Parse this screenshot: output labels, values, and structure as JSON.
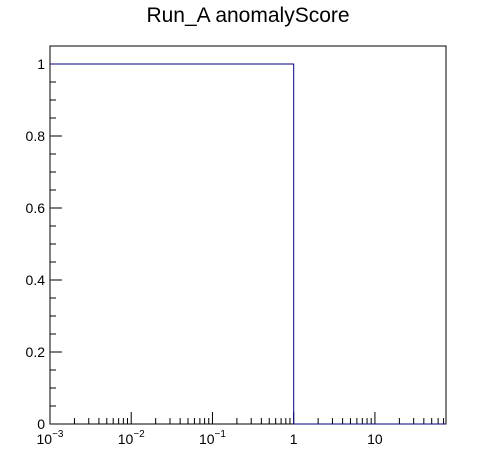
{
  "chart_data": {
    "type": "line",
    "title": "Run_A anomalyScore",
    "xlabel": "",
    "ylabel": "",
    "x_scale": "log",
    "xlim": [
      0.001,
      75
    ],
    "ylim": [
      0,
      1.05
    ],
    "grid": false,
    "line_color": "#000080",
    "step": true,
    "series": [
      {
        "x": [
          0.001,
          1,
          1,
          75
        ],
        "values": [
          1,
          1,
          0,
          0
        ]
      }
    ],
    "x_tick_labels": [
      {
        "value": 0.001,
        "base": "10",
        "exp": "−3"
      },
      {
        "value": 0.01,
        "base": "10",
        "exp": "−2"
      },
      {
        "value": 0.1,
        "base": "10",
        "exp": "−1"
      },
      {
        "value": 1,
        "base": "1",
        "exp": ""
      },
      {
        "value": 10,
        "base": "10",
        "exp": ""
      }
    ],
    "y_tick_labels": [
      {
        "value": 0,
        "label": "0"
      },
      {
        "value": 0.2,
        "label": "0.2"
      },
      {
        "value": 0.4,
        "label": "0.4"
      },
      {
        "value": 0.6,
        "label": "0.6"
      },
      {
        "value": 0.8,
        "label": "0.8"
      },
      {
        "value": 1,
        "label": "1"
      }
    ]
  }
}
